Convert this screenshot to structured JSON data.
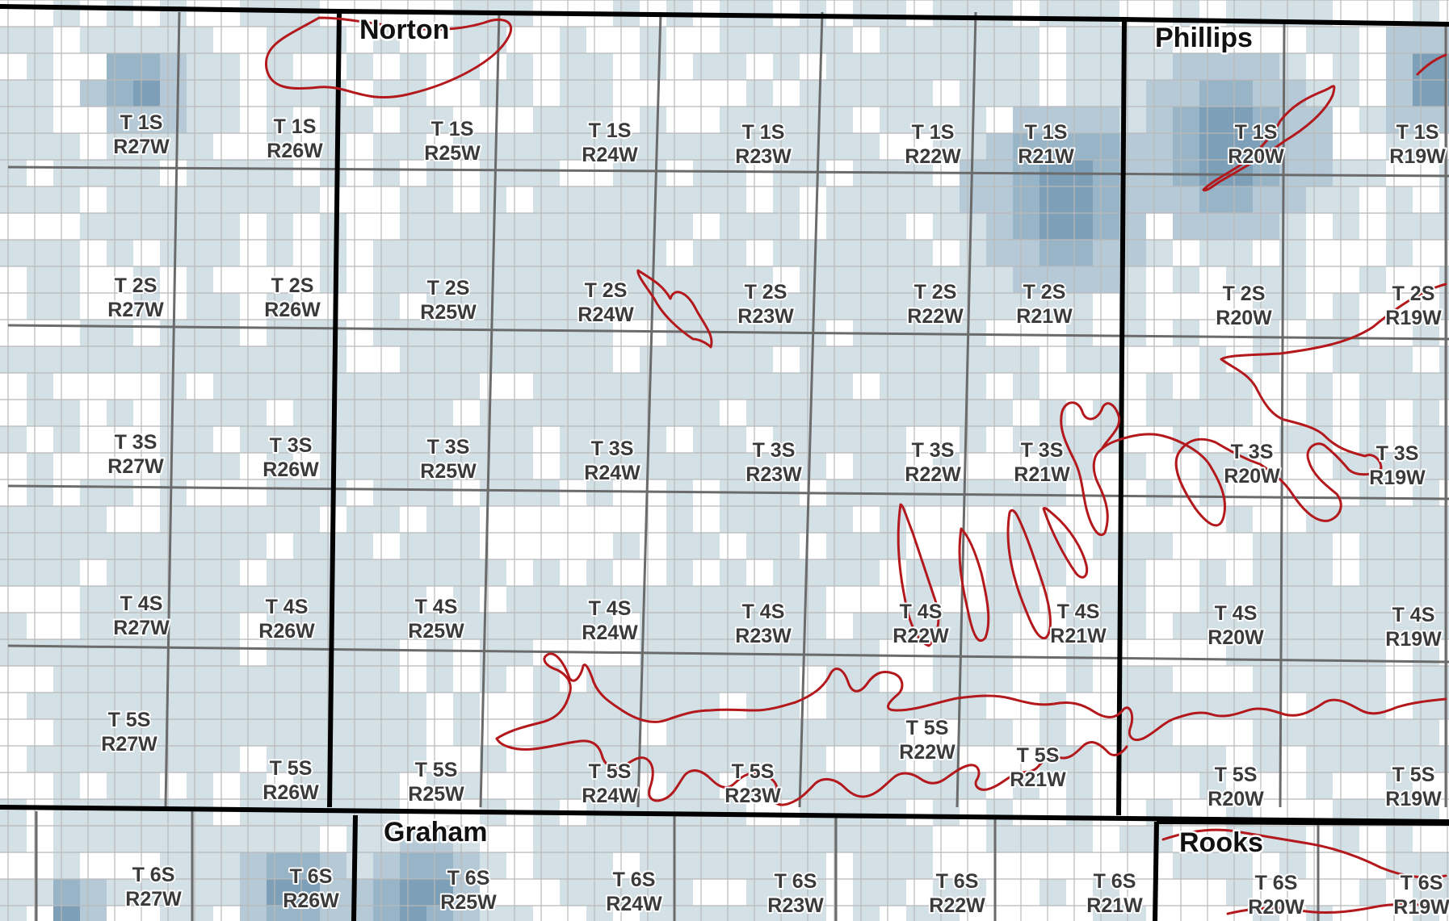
{
  "map": {
    "colors": {
      "background": "#ffffff",
      "shade_1": "#d3e1e7",
      "shade_2": "#b5cad6",
      "shade_3": "#98b4c7",
      "shade_4": "#7d9fb8",
      "section_line": "#b9b9b9",
      "township_line": "#6b6b6b",
      "county_line": "#000000",
      "contour": "#b3181c",
      "label": "#3a3a3a"
    },
    "counties": [
      {
        "name": "Norton"
      },
      {
        "name": "Phillips"
      },
      {
        "name": "Graham"
      },
      {
        "name": "Rooks"
      }
    ],
    "townships": [
      {
        "t": "T 1S",
        "r": "R27W"
      },
      {
        "t": "T 1S",
        "r": "R26W"
      },
      {
        "t": "T 1S",
        "r": "R25W"
      },
      {
        "t": "T 1S",
        "r": "R24W"
      },
      {
        "t": "T 1S",
        "r": "R23W"
      },
      {
        "t": "T 1S",
        "r": "R22W"
      },
      {
        "t": "T 1S",
        "r": "R21W"
      },
      {
        "t": "T 1S",
        "r": "R20W"
      },
      {
        "t": "T 1S",
        "r": "R19W"
      },
      {
        "t": "T 2S",
        "r": "R27W"
      },
      {
        "t": "T 2S",
        "r": "R26W"
      },
      {
        "t": "T 2S",
        "r": "R25W"
      },
      {
        "t": "T 2S",
        "r": "R24W"
      },
      {
        "t": "T 2S",
        "r": "R23W"
      },
      {
        "t": "T 2S",
        "r": "R22W"
      },
      {
        "t": "T 2S",
        "r": "R21W"
      },
      {
        "t": "T 2S",
        "r": "R20W"
      },
      {
        "t": "T 2S",
        "r": "R19W"
      },
      {
        "t": "T 3S",
        "r": "R27W"
      },
      {
        "t": "T 3S",
        "r": "R26W"
      },
      {
        "t": "T 3S",
        "r": "R25W"
      },
      {
        "t": "T 3S",
        "r": "R24W"
      },
      {
        "t": "T 3S",
        "r": "R23W"
      },
      {
        "t": "T 3S",
        "r": "R22W"
      },
      {
        "t": "T 3S",
        "r": "R21W"
      },
      {
        "t": "T 3S",
        "r": "R20W"
      },
      {
        "t": "T 3S",
        "r": "R19W"
      },
      {
        "t": "T 4S",
        "r": "R27W"
      },
      {
        "t": "T 4S",
        "r": "R26W"
      },
      {
        "t": "T 4S",
        "r": "R25W"
      },
      {
        "t": "T 4S",
        "r": "R24W"
      },
      {
        "t": "T 4S",
        "r": "R23W"
      },
      {
        "t": "T 4S",
        "r": "R22W"
      },
      {
        "t": "T 4S",
        "r": "R21W"
      },
      {
        "t": "T 4S",
        "r": "R20W"
      },
      {
        "t": "T 4S",
        "r": "R19W"
      },
      {
        "t": "T 5S",
        "r": "R27W"
      },
      {
        "t": "T 5S",
        "r": "R26W"
      },
      {
        "t": "T 5S",
        "r": "R25W"
      },
      {
        "t": "T 5S",
        "r": "R24W"
      },
      {
        "t": "T 5S",
        "r": "R23W"
      },
      {
        "t": "T 5S",
        "r": "R22W"
      },
      {
        "t": "T 5S",
        "r": "R21W"
      },
      {
        "t": "T 5S",
        "r": "R20W"
      },
      {
        "t": "T 5S",
        "r": "R19W"
      },
      {
        "t": "T 6S",
        "r": "R27W"
      },
      {
        "t": "T 6S",
        "r": "R26W"
      },
      {
        "t": "T 6S",
        "r": "R25W"
      },
      {
        "t": "T 6S",
        "r": "R24W"
      },
      {
        "t": "T 6S",
        "r": "R23W"
      },
      {
        "t": "T 6S",
        "r": "R22W"
      },
      {
        "t": "T 6S",
        "r": "R21W"
      },
      {
        "t": "T 6S",
        "r": "R20W"
      },
      {
        "t": "T 6S",
        "r": "R19W"
      }
    ]
  }
}
